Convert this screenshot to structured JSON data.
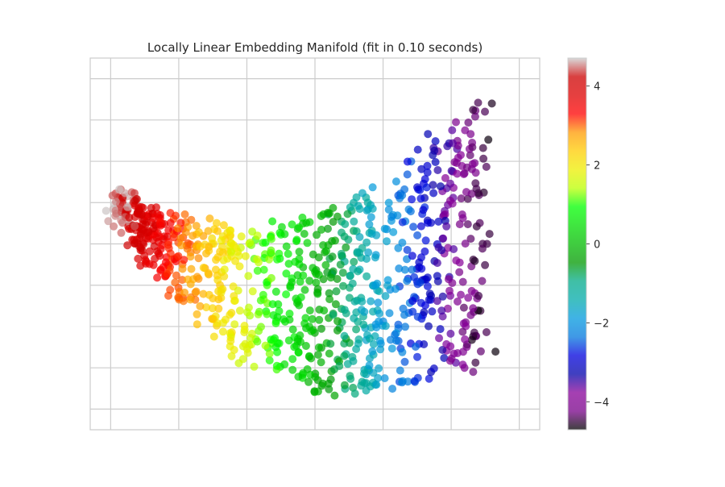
{
  "chart_data": {
    "type": "scatter",
    "title": "Locally Linear Embedding Manifold (fit in 0.10 seconds)",
    "xlabel": "",
    "ylabel": "",
    "x_tick_labels_shown": false,
    "y_tick_labels_shown": false,
    "grid": true,
    "xlim": [
      -0.33,
      0.33
    ],
    "ylim": [
      -0.45,
      0.45
    ],
    "x_gridlines": [
      -0.3,
      -0.2,
      -0.1,
      0.0,
      0.1,
      0.2,
      0.3
    ],
    "y_gridlines": [
      -0.4,
      -0.3,
      -0.2,
      -0.1,
      0.0,
      0.1,
      0.2,
      0.3,
      0.4
    ],
    "colorbar": {
      "colormap": "nipy_spectral",
      "range": [
        -4.71,
        4.71
      ],
      "ticks": [
        4,
        2,
        0,
        -2,
        -4
      ],
      "tick_labels": [
        "4",
        "2",
        "0",
        "−2",
        "−4"
      ]
    },
    "point_count": 1000,
    "alpha": 0.7,
    "colors": {
      "grid": "#cccccc",
      "frame": "#cccccc",
      "text": "#262626"
    },
    "description_of_points": "Manifold points shaped like a curved sheet; color runs from white/red at left (value ~4.7) through orange, yellow, green, teal, blue to purple/black at right (value ~-4.7)."
  }
}
